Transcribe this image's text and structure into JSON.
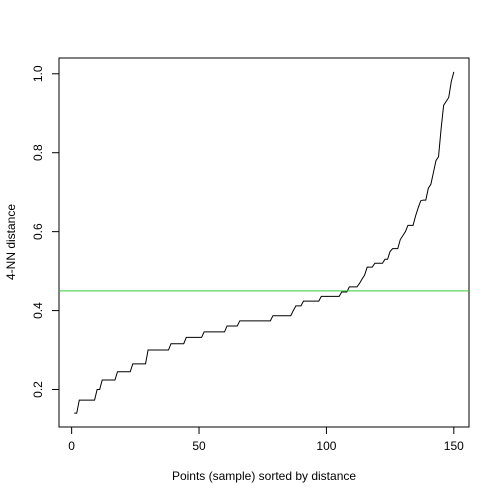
{
  "chart_data": {
    "type": "line",
    "xlabel": "Points (sample) sorted by distance",
    "ylabel": "4-NN distance",
    "x": [
      1,
      2,
      3,
      4,
      5,
      6,
      7,
      8,
      9,
      10,
      11,
      12,
      13,
      14,
      15,
      16,
      17,
      18,
      19,
      20,
      21,
      22,
      23,
      24,
      25,
      26,
      27,
      28,
      29,
      30,
      31,
      32,
      33,
      34,
      35,
      36,
      37,
      38,
      39,
      40,
      41,
      42,
      43,
      44,
      45,
      46,
      47,
      48,
      49,
      50,
      51,
      52,
      53,
      54,
      55,
      56,
      57,
      58,
      59,
      60,
      61,
      62,
      63,
      64,
      65,
      66,
      67,
      68,
      69,
      70,
      71,
      72,
      73,
      74,
      75,
      76,
      77,
      78,
      79,
      80,
      81,
      82,
      83,
      84,
      85,
      86,
      87,
      88,
      89,
      90,
      91,
      92,
      93,
      94,
      95,
      96,
      97,
      98,
      99,
      100,
      101,
      102,
      103,
      104,
      105,
      106,
      107,
      108,
      109,
      110,
      111,
      112,
      113,
      114,
      115,
      116,
      117,
      118,
      119,
      120,
      121,
      122,
      123,
      124,
      125,
      126,
      127,
      128,
      129,
      130,
      131,
      132,
      133,
      134,
      135,
      136,
      137,
      138,
      139,
      140,
      141,
      142,
      143,
      144,
      145,
      146,
      147,
      148,
      149,
      150
    ],
    "values": [
      0.14,
      0.14,
      0.173,
      0.173,
      0.173,
      0.173,
      0.173,
      0.173,
      0.173,
      0.2,
      0.2,
      0.224,
      0.224,
      0.224,
      0.224,
      0.224,
      0.224,
      0.245,
      0.245,
      0.245,
      0.245,
      0.245,
      0.245,
      0.265,
      0.265,
      0.265,
      0.265,
      0.265,
      0.265,
      0.3,
      0.3,
      0.3,
      0.3,
      0.3,
      0.3,
      0.3,
      0.3,
      0.3,
      0.316,
      0.316,
      0.316,
      0.316,
      0.316,
      0.316,
      0.332,
      0.332,
      0.332,
      0.332,
      0.332,
      0.332,
      0.332,
      0.346,
      0.346,
      0.346,
      0.346,
      0.346,
      0.346,
      0.346,
      0.346,
      0.346,
      0.361,
      0.361,
      0.361,
      0.361,
      0.361,
      0.374,
      0.374,
      0.374,
      0.374,
      0.374,
      0.374,
      0.374,
      0.374,
      0.374,
      0.374,
      0.374,
      0.374,
      0.374,
      0.387,
      0.387,
      0.387,
      0.387,
      0.387,
      0.387,
      0.387,
      0.387,
      0.4,
      0.412,
      0.412,
      0.412,
      0.424,
      0.424,
      0.424,
      0.424,
      0.424,
      0.424,
      0.424,
      0.436,
      0.436,
      0.436,
      0.436,
      0.436,
      0.436,
      0.436,
      0.436,
      0.447,
      0.447,
      0.447,
      0.46,
      0.46,
      0.46,
      0.46,
      0.469,
      0.48,
      0.49,
      0.51,
      0.51,
      0.51,
      0.52,
      0.52,
      0.52,
      0.52,
      0.53,
      0.53,
      0.55,
      0.557,
      0.557,
      0.557,
      0.58,
      0.59,
      0.6,
      0.616,
      0.616,
      0.616,
      0.64,
      0.66,
      0.678,
      0.68,
      0.68,
      0.71,
      0.72,
      0.75,
      0.78,
      0.79,
      0.86,
      0.92,
      0.93,
      0.94,
      0.98,
      1.005
    ],
    "color": "#000000",
    "hline": 0.45,
    "hline_color": "#33cc33",
    "xlim": [
      -4.96,
      155.96
    ],
    "xticks": [
      0,
      50,
      100,
      150
    ],
    "ylim": [
      0.105,
      1.04
    ],
    "yticks": [
      0.2,
      0.4,
      0.6,
      0.8,
      {
        "value": 1,
        "label": "1.0"
      }
    ]
  }
}
